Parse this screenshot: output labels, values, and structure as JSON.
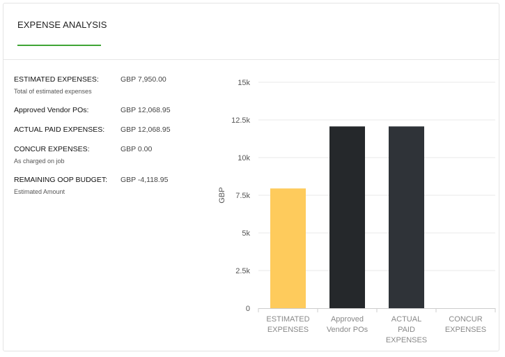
{
  "tabs": [
    {
      "label": "EXPENSE ANALYSIS",
      "active": true
    }
  ],
  "summary": [
    {
      "label": "ESTIMATED EXPENSES:",
      "sub": "Total of estimated expenses",
      "value": "GBP 7,950.00"
    },
    {
      "label": "Approved Vendor POs:",
      "sub": "",
      "value": "GBP 12,068.95"
    },
    {
      "label": "ACTUAL PAID EXPENSES:",
      "sub": "",
      "value": "GBP 12,068.95"
    },
    {
      "label": "CONCUR EXPENSES:",
      "sub": "As charged on job",
      "value": "GBP 0.00"
    },
    {
      "label": "REMAINING OOP BUDGET:",
      "sub": "Estimated Amount",
      "value": "GBP -4,118.95"
    }
  ],
  "colors": {
    "accent": "#3fa535",
    "estimated": "#fecb5c",
    "vendor": "#25282b",
    "actual": "#2f3338"
  },
  "chart_data": {
    "type": "bar",
    "ylabel": "GBP",
    "ylim": [
      0,
      15000
    ],
    "yticks": [
      {
        "value": 0,
        "label": "0"
      },
      {
        "value": 2500,
        "label": "2.5k"
      },
      {
        "value": 5000,
        "label": "5k"
      },
      {
        "value": 7500,
        "label": "7.5k"
      },
      {
        "value": 10000,
        "label": "10k"
      },
      {
        "value": 12500,
        "label": "12.5k"
      },
      {
        "value": 15000,
        "label": "15k"
      }
    ],
    "categories": [
      {
        "lines": [
          "ESTIMATED",
          "EXPENSES"
        ]
      },
      {
        "lines": [
          "Approved",
          "Vendor POs"
        ]
      },
      {
        "lines": [
          "ACTUAL",
          "PAID",
          "EXPENSES"
        ]
      },
      {
        "lines": [
          "CONCUR",
          "EXPENSES"
        ]
      }
    ],
    "values": [
      7950,
      12068.95,
      12068.95,
      0
    ],
    "colors": [
      "#fecb5c",
      "#25282b",
      "#2f3338",
      "#2f3338"
    ],
    "grid": true,
    "legend": "none"
  }
}
